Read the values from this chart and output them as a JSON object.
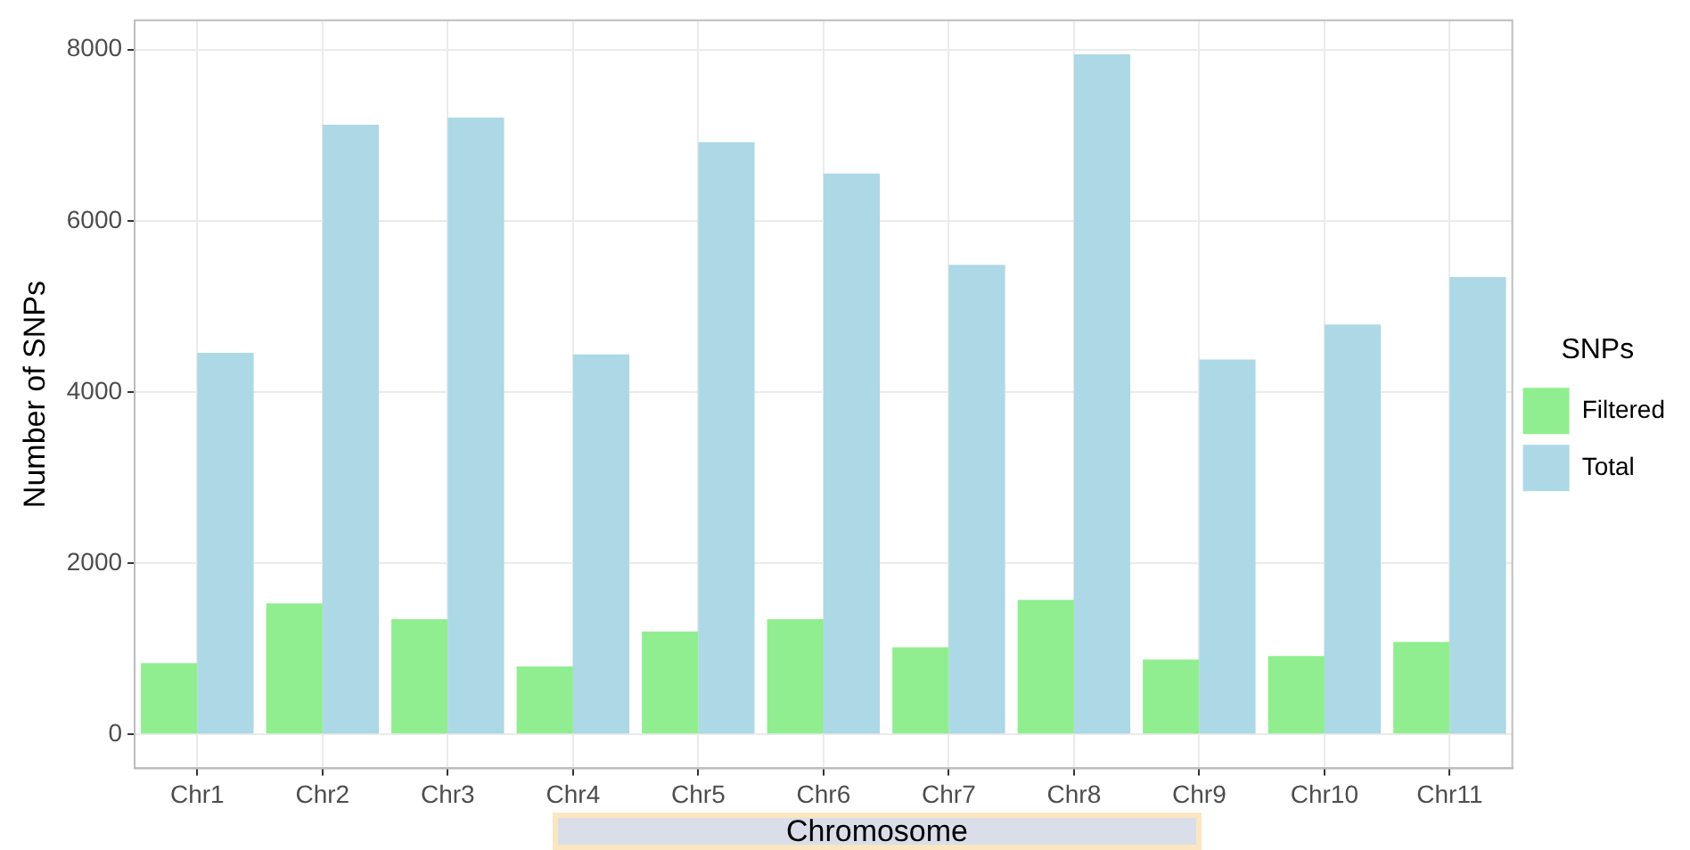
{
  "chart_data": {
    "type": "bar",
    "xlabel": "Chromosome",
    "ylabel": "Number of SNPs",
    "legend_title": "SNPs",
    "categories": [
      "Chr1",
      "Chr2",
      "Chr3",
      "Chr4",
      "Chr5",
      "Chr6",
      "Chr7",
      "Chr8",
      "Chr9",
      "Chr10",
      "Chr11"
    ],
    "series": [
      {
        "name": "Filtered",
        "color": "#90ee90",
        "values": [
          834,
          1530,
          1346,
          793,
          1203,
          1346,
          1018,
          1572,
          875,
          916,
          1080
        ]
      },
      {
        "name": "Total",
        "color": "#add8e6",
        "values": [
          4457,
          7123,
          7205,
          4440,
          6920,
          6551,
          5486,
          7945,
          4379,
          4789,
          5342
        ]
      }
    ],
    "ylim": [
      -397,
      8342
    ],
    "yticks": [
      0,
      2000,
      4000,
      6000,
      8000
    ],
    "grid": true,
    "legend": "right"
  }
}
